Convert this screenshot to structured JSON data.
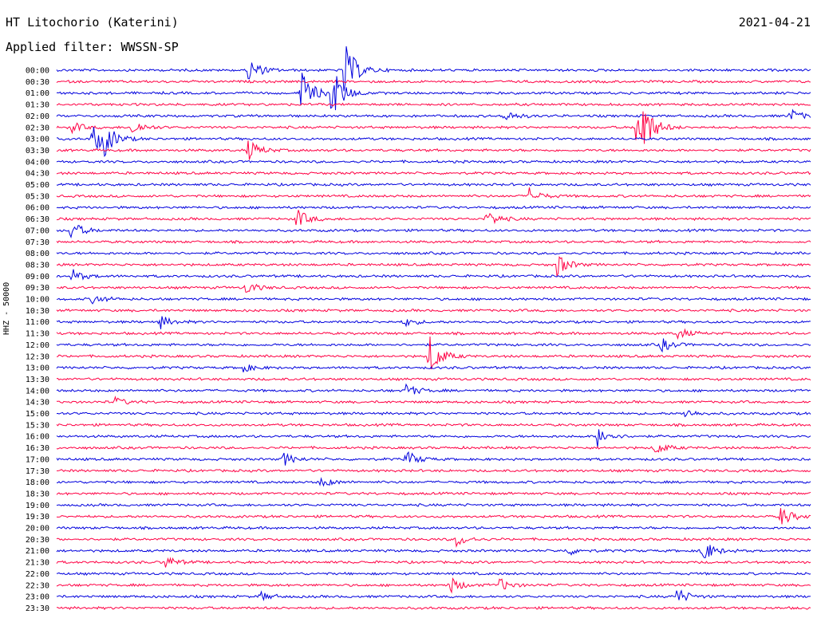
{
  "header": {
    "station": "HT Litochorio (Katerini)",
    "date": "2021-04-21",
    "filter": "Applied filter: WWSSN-SP"
  },
  "colors": {
    "even_row": "#0000dd",
    "odd_row": "#ff0044",
    "text": "#000000"
  },
  "chart_data": {
    "type": "line",
    "title": "HT Litochorio (Katerini)",
    "subtitle": "Applied filter: WWSSN-SP",
    "ylabel": "HHZ - 50000",
    "xlabel": "",
    "row_interval_minutes": 30,
    "row_labels": [
      "00:00",
      "00:30",
      "01:00",
      "01:30",
      "02:00",
      "02:30",
      "03:00",
      "03:30",
      "04:00",
      "04:30",
      "05:00",
      "05:30",
      "06:00",
      "06:30",
      "07:00",
      "07:30",
      "08:00",
      "08:30",
      "09:00",
      "09:30",
      "10:00",
      "10:30",
      "11:00",
      "11:30",
      "12:00",
      "12:30",
      "13:00",
      "13:30",
      "14:00",
      "14:30",
      "15:00",
      "15:30",
      "16:00",
      "16:30",
      "17:00",
      "17:30",
      "18:00",
      "18:30",
      "19:00",
      "19:30",
      "20:00",
      "20:30",
      "21:00",
      "21:30",
      "22:00",
      "22:30",
      "23:00",
      "23:30"
    ],
    "row_colors": [
      "blue",
      "red"
    ],
    "grid": false,
    "legend": "none",
    "events": [
      {
        "row": 0,
        "minute": 7.6,
        "amp": 1.2
      },
      {
        "row": 0,
        "minute": 11.4,
        "amp": 3.0
      },
      {
        "row": 2,
        "minute": 9.7,
        "amp": 2.2
      },
      {
        "row": 2,
        "minute": 10.9,
        "amp": 2.6
      },
      {
        "row": 4,
        "minute": 17.8,
        "amp": 0.6
      },
      {
        "row": 4,
        "minute": 29.2,
        "amp": 0.6
      },
      {
        "row": 5,
        "minute": 0.6,
        "amp": 0.5
      },
      {
        "row": 5,
        "minute": 3.0,
        "amp": 0.7
      },
      {
        "row": 5,
        "minute": 23.1,
        "amp": 4.5
      },
      {
        "row": 6,
        "minute": 1.4,
        "amp": 1.4
      },
      {
        "row": 6,
        "minute": 1.9,
        "amp": 1.2
      },
      {
        "row": 7,
        "minute": 7.6,
        "amp": 1.0
      },
      {
        "row": 11,
        "minute": 18.8,
        "amp": 0.7
      },
      {
        "row": 13,
        "minute": 9.5,
        "amp": 1.0
      },
      {
        "row": 13,
        "minute": 17.1,
        "amp": 0.8
      },
      {
        "row": 14,
        "minute": 0.5,
        "amp": 1.0
      },
      {
        "row": 17,
        "minute": 19.9,
        "amp": 1.0
      },
      {
        "row": 18,
        "minute": 0.6,
        "amp": 0.6
      },
      {
        "row": 19,
        "minute": 7.5,
        "amp": 0.6
      },
      {
        "row": 20,
        "minute": 1.4,
        "amp": 0.5
      },
      {
        "row": 22,
        "minute": 4.1,
        "amp": 0.6
      },
      {
        "row": 22,
        "minute": 13.8,
        "amp": 0.4
      },
      {
        "row": 23,
        "minute": 24.7,
        "amp": 0.5
      },
      {
        "row": 24,
        "minute": 24.0,
        "amp": 0.7
      },
      {
        "row": 25,
        "minute": 14.8,
        "amp": 2.0
      },
      {
        "row": 26,
        "minute": 7.3,
        "amp": 0.5
      },
      {
        "row": 28,
        "minute": 13.9,
        "amp": 0.6
      },
      {
        "row": 29,
        "minute": 2.3,
        "amp": 0.4
      },
      {
        "row": 30,
        "minute": 25.0,
        "amp": 0.4
      },
      {
        "row": 32,
        "minute": 21.5,
        "amp": 1.0
      },
      {
        "row": 33,
        "minute": 23.8,
        "amp": 0.6
      },
      {
        "row": 34,
        "minute": 9.0,
        "amp": 0.6
      },
      {
        "row": 34,
        "minute": 13.9,
        "amp": 0.8
      },
      {
        "row": 36,
        "minute": 10.5,
        "amp": 0.5
      },
      {
        "row": 39,
        "minute": 28.8,
        "amp": 0.9
      },
      {
        "row": 41,
        "minute": 15.9,
        "amp": 0.6
      },
      {
        "row": 42,
        "minute": 20.3,
        "amp": 0.4
      },
      {
        "row": 42,
        "minute": 25.6,
        "amp": 1.3
      },
      {
        "row": 43,
        "minute": 4.3,
        "amp": 0.6
      },
      {
        "row": 45,
        "minute": 15.6,
        "amp": 0.8
      },
      {
        "row": 45,
        "minute": 17.6,
        "amp": 0.6
      },
      {
        "row": 46,
        "minute": 8.1,
        "amp": 0.4
      },
      {
        "row": 46,
        "minute": 24.6,
        "amp": 0.9
      }
    ]
  }
}
